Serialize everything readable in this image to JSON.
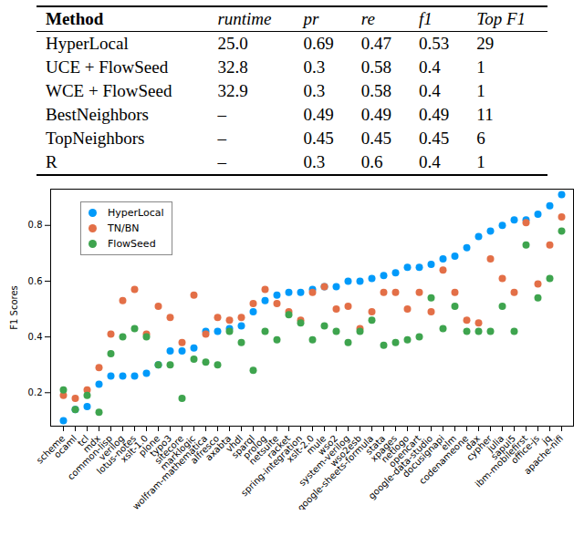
{
  "table": {
    "columns": [
      "Method",
      "runtime",
      "pr",
      "re",
      "f1",
      "Top F1"
    ],
    "rows": [
      [
        "HyperLocal",
        "25.0",
        "0.69",
        "0.47",
        "0.53",
        "29"
      ],
      [
        "UCE + FlowSeed",
        "32.8",
        "0.3",
        "0.58",
        "0.4",
        "1"
      ],
      [
        "WCE + FlowSeed",
        "32.9",
        "0.3",
        "0.58",
        "0.4",
        "1"
      ],
      [
        "BestNeighbors",
        "–",
        "0.49",
        "0.49",
        "0.49",
        "11"
      ],
      [
        "TopNeighbors",
        "–",
        "0.45",
        "0.45",
        "0.45",
        "6"
      ],
      [
        "R",
        "–",
        "0.3",
        "0.6",
        "0.4",
        "1"
      ]
    ]
  },
  "chart_data": {
    "type": "scatter",
    "ylabel": "F1 Scores",
    "marker": "circle",
    "legend": "top-left",
    "categories": [
      "scheme",
      "ocaml",
      "tcl",
      "mdx",
      "common-lisp",
      "verilog",
      "lotus-notes",
      "xslt-1.0",
      "plone",
      "typo3",
      "sitecore",
      "marklogic",
      "wolfram-mathematica",
      "alfresco",
      "axabta",
      "vhdl",
      "sparql",
      "prolog",
      "netsuite",
      "racket",
      "spring-integration",
      "xslt-2.0",
      "mule",
      "wso2",
      "system-verilog",
      "wso2esb",
      "google-sheets-formula",
      "stata",
      "xpages",
      "netlogo",
      "opencart",
      "google-data-studio",
      "docusignapi",
      "elm",
      "codenameone",
      "dax",
      "cypher",
      "julia",
      "sapui5",
      "ibm-mobilefirst",
      "office-js",
      "jq",
      "apache-nifi"
    ],
    "series": [
      {
        "name": "HyperLocal",
        "color": "#009AFA",
        "values": [
          0.1,
          0.14,
          0.15,
          0.23,
          0.26,
          0.26,
          0.26,
          0.27,
          0.3,
          0.35,
          0.35,
          0.36,
          0.42,
          0.42,
          0.43,
          0.44,
          0.49,
          0.53,
          0.55,
          0.56,
          0.56,
          0.57,
          0.58,
          0.58,
          0.6,
          0.6,
          0.61,
          0.62,
          0.63,
          0.65,
          0.65,
          0.66,
          0.68,
          0.69,
          0.72,
          0.76,
          0.78,
          0.8,
          0.82,
          0.82,
          0.84,
          0.87,
          0.91
        ]
      },
      {
        "name": "TN/BN",
        "color": "#E36F47",
        "values": [
          0.19,
          0.18,
          0.21,
          0.29,
          0.41,
          0.53,
          0.57,
          0.41,
          0.51,
          0.47,
          0.38,
          0.55,
          0.41,
          0.47,
          0.46,
          0.47,
          0.52,
          0.57,
          0.52,
          0.49,
          0.46,
          0.56,
          0.58,
          0.5,
          0.51,
          0.43,
          0.49,
          0.56,
          0.56,
          0.5,
          0.56,
          0.49,
          0.64,
          0.56,
          0.46,
          0.45,
          0.68,
          0.61,
          0.56,
          0.81,
          0.59,
          0.73,
          0.83
        ]
      },
      {
        "name": "FlowSeed",
        "color": "#3EA44E",
        "values": [
          0.21,
          0.14,
          0.19,
          0.13,
          0.34,
          0.4,
          0.43,
          0.4,
          0.3,
          0.3,
          0.18,
          0.32,
          0.31,
          0.3,
          0.42,
          0.38,
          0.28,
          0.42,
          0.39,
          0.48,
          0.45,
          0.39,
          0.44,
          0.42,
          0.38,
          0.42,
          0.46,
          0.37,
          0.38,
          0.39,
          0.4,
          0.54,
          0.43,
          0.51,
          0.42,
          0.42,
          0.42,
          0.51,
          0.42,
          0.73,
          0.54,
          0.61,
          0.78
        ]
      }
    ],
    "ylim": [
      0.08,
      0.93
    ],
    "yticks": [
      0.2,
      0.4,
      0.6,
      0.8
    ]
  }
}
